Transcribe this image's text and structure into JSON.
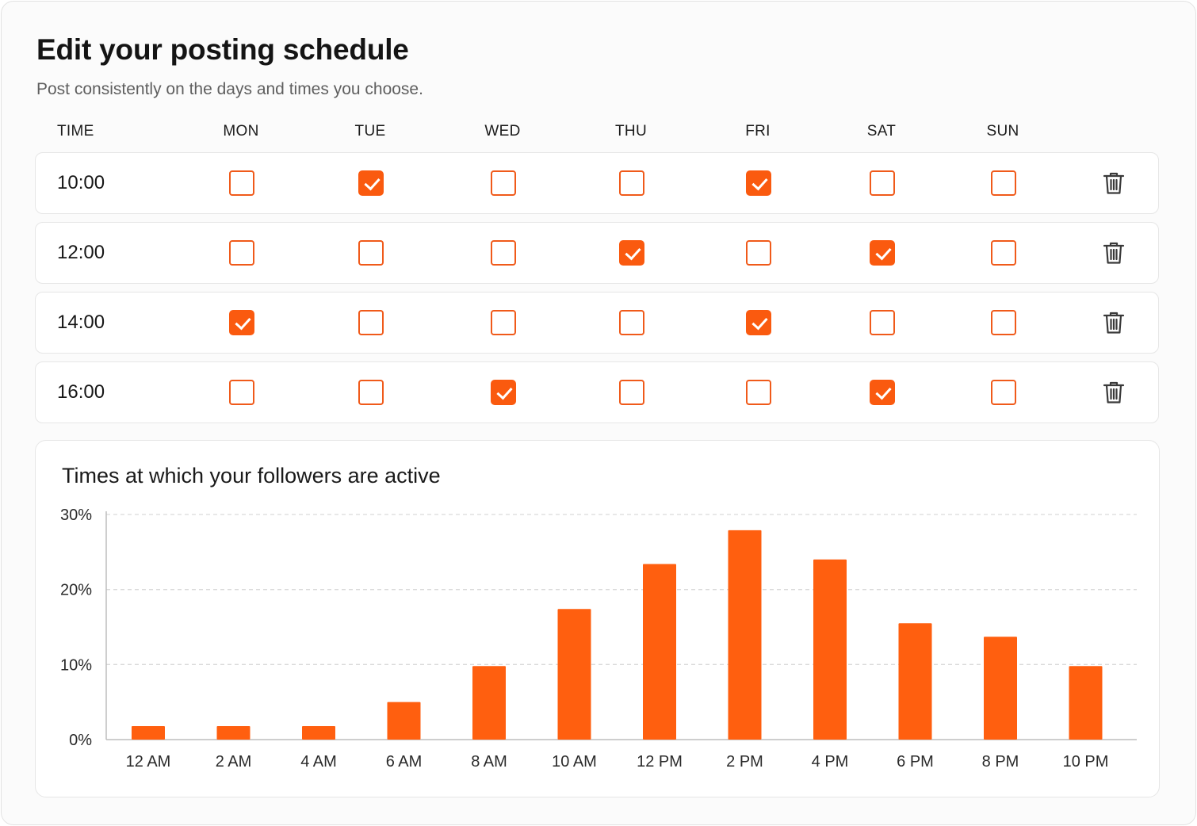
{
  "header": {
    "title": "Edit your posting schedule",
    "subtitle": "Post consistently on the days and times you choose."
  },
  "schedule": {
    "time_header": "TIME",
    "days": [
      "MON",
      "TUE",
      "WED",
      "THU",
      "FRI",
      "SAT",
      "SUN"
    ],
    "rows": [
      {
        "time": "10:00",
        "checked": [
          false,
          true,
          false,
          false,
          true,
          false,
          false
        ]
      },
      {
        "time": "12:00",
        "checked": [
          false,
          false,
          false,
          true,
          false,
          true,
          false
        ]
      },
      {
        "time": "14:00",
        "checked": [
          true,
          false,
          false,
          false,
          true,
          false,
          false
        ]
      },
      {
        "time": "16:00",
        "checked": [
          false,
          false,
          true,
          false,
          false,
          true,
          false
        ]
      }
    ],
    "delete_icon": "trash-icon"
  },
  "colors": {
    "accent": "#fa5a0f",
    "bar": "#ff5f0f"
  },
  "chart_data": {
    "type": "bar",
    "title": "Times at which your followers are active",
    "categories": [
      "12 AM",
      "2 AM",
      "4 AM",
      "6 AM",
      "8 AM",
      "10 AM",
      "12 PM",
      "2 PM",
      "4 PM",
      "6 PM",
      "8 PM",
      "10 PM"
    ],
    "values": [
      1.8,
      1.8,
      1.8,
      5,
      9.8,
      17.4,
      23.4,
      27.9,
      24,
      15.5,
      13.7,
      9.8
    ],
    "unit": "%",
    "ylim": [
      0,
      30
    ],
    "yticks": [
      "0%",
      "10%",
      "20%",
      "30%"
    ],
    "grid": true,
    "xlabel": "",
    "ylabel": ""
  }
}
